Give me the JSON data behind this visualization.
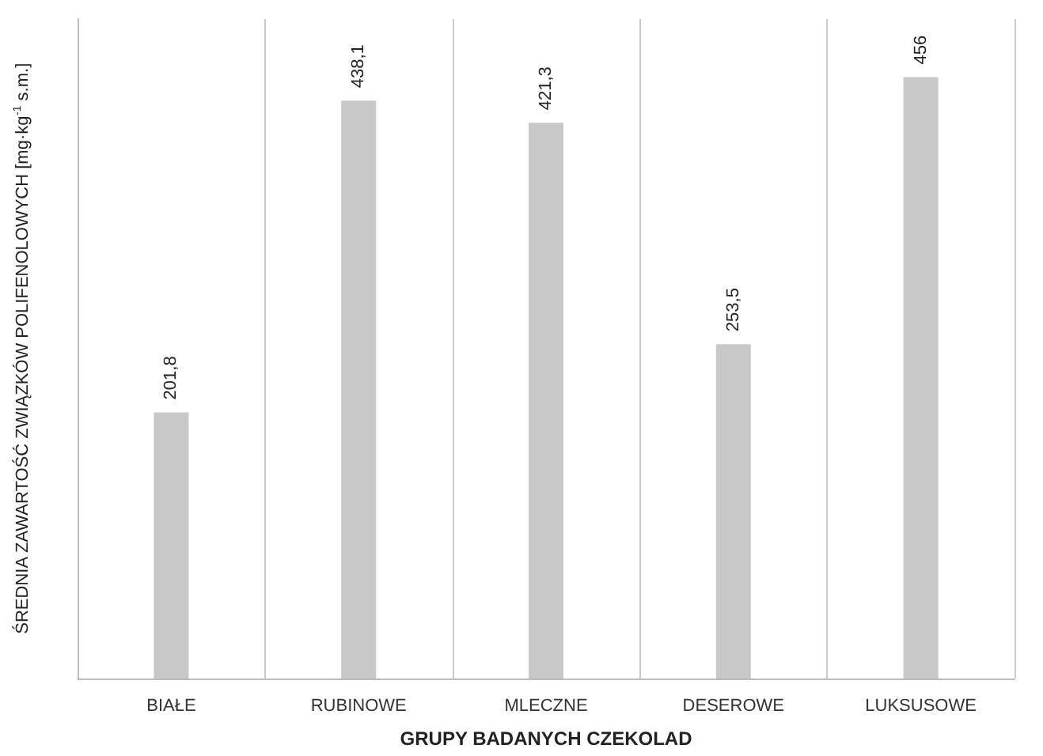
{
  "chart_data": {
    "type": "bar",
    "xlabel": "GRUPY BADANYCH CZEKOLAD",
    "ylabel": "ŚREDNIA ZAWARTOŚĆ ZWIĄZKÓW POLIFENOLOWYCH [mg·kg$^{-1}$ s.m.]",
    "categories": [
      "BIAŁE",
      "RUBINOWE",
      "MLECZNE",
      "DESEROWE",
      "LUKSUSOWE"
    ],
    "values": [
      201.8,
      438.1,
      421.3,
      253.5,
      456
    ],
    "color": "#c8c8c8",
    "data_labels": true,
    "value_labels": [
      "201,8",
      "438,1",
      "421,3",
      "253,5",
      "456"
    ],
    "grid": "x"
  }
}
